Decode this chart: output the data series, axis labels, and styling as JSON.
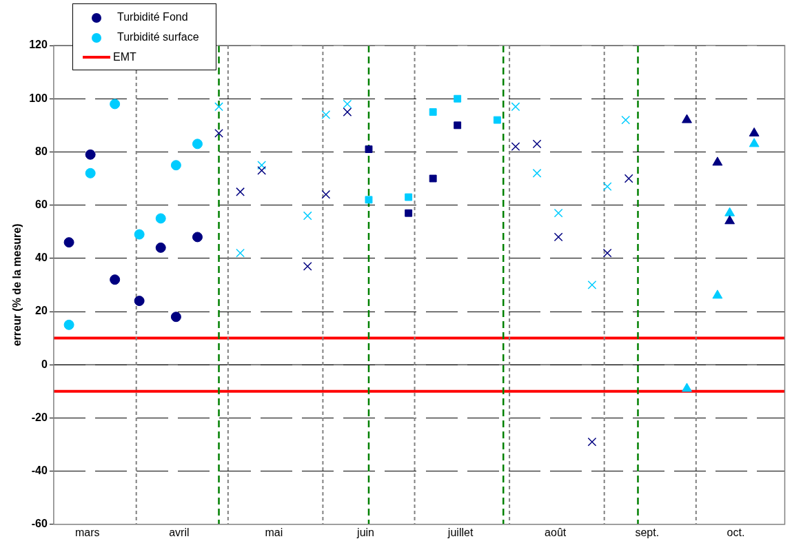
{
  "chart_data": {
    "type": "scatter",
    "ylabel": "erreur (% de la mesure)",
    "legend": "top left",
    "grid": "y",
    "xlim": [
      "--03-05",
      "--10-30"
    ],
    "xticks": [
      {
        "value": "--03-16",
        "label": "mars"
      },
      {
        "value": "--04-15",
        "label": "avril"
      },
      {
        "value": "--05-16",
        "label": "mai"
      },
      {
        "value": "--06-15",
        "label": "juin"
      },
      {
        "value": "--07-16",
        "label": "juillet"
      },
      {
        "value": "--08-16",
        "label": "août"
      },
      {
        "value": "--09-15",
        "label": "sept."
      },
      {
        "value": "--10-14",
        "label": "oct."
      }
    ],
    "ylim": [
      -60,
      120
    ],
    "yticks": [
      -60,
      -40,
      -20,
      0,
      20,
      40,
      60,
      80,
      100,
      120
    ],
    "series": [
      {
        "name": "Turbidité Fond",
        "color": "#000080",
        "marker": "circle",
        "x": [
          "--03-10",
          "--03-17",
          "--03-25",
          "--04-02",
          "--04-09",
          "--04-14",
          "--04-21"
        ],
        "values": [
          46,
          79,
          32,
          24,
          44,
          18,
          48
        ]
      },
      {
        "name": "Turbidité surface",
        "color": "#00ccff",
        "marker": "circle",
        "x": [
          "--03-10",
          "--03-17",
          "--03-25",
          "--04-02",
          "--04-09",
          "--04-14",
          "--04-21"
        ],
        "values": [
          15,
          72,
          98,
          49,
          55,
          75,
          83
        ]
      },
      {
        "color": "#000080",
        "marker": "cross",
        "x": [
          "--04-28",
          "--05-05",
          "--05-12",
          "--05-27",
          "--06-02",
          "--06-09"
        ],
        "values": [
          87,
          65,
          73,
          37,
          64,
          95
        ]
      },
      {
        "color": "#00ccff",
        "marker": "cross",
        "x": [
          "--04-28",
          "--05-05",
          "--05-12",
          "--05-27",
          "--06-02",
          "--06-09"
        ],
        "values": [
          97,
          42,
          75,
          56,
          94,
          98
        ]
      },
      {
        "color": "#000080",
        "marker": "square",
        "x": [
          "--06-16",
          "--06-29",
          "--07-07",
          "--07-15"
        ],
        "values": [
          81,
          57,
          70,
          90
        ]
      },
      {
        "color": "#00ccff",
        "marker": "square",
        "x": [
          "--06-16",
          "--06-29",
          "--07-07",
          "--07-15",
          "--07-28"
        ],
        "values": [
          62,
          63,
          95,
          100,
          92
        ]
      },
      {
        "color": "#000080",
        "marker": "cross",
        "x": [
          "--08-03",
          "--08-10",
          "--08-17",
          "--08-28",
          "--09-02",
          "--09-09"
        ],
        "values": [
          82,
          83,
          48,
          -29,
          42,
          70
        ]
      },
      {
        "color": "#00ccff",
        "marker": "cross",
        "x": [
          "--08-03",
          "--08-10",
          "--08-17",
          "--08-28",
          "--09-02",
          "--09-08"
        ],
        "values": [
          97,
          72,
          57,
          30,
          67,
          92
        ]
      },
      {
        "color": "#000080",
        "marker": "triangle",
        "x": [
          "--09-28",
          "--10-08",
          "--10-12",
          "--10-20"
        ],
        "values": [
          92,
          76,
          54,
          87
        ]
      },
      {
        "color": "#00ccff",
        "marker": "triangle",
        "x": [
          "--09-28",
          "--10-08",
          "--10-12",
          "--10-20"
        ],
        "values": [
          -9,
          26,
          57,
          83
        ]
      }
    ],
    "ref_lines": [
      {
        "axis": "y",
        "value": 10,
        "label": "EMT",
        "color": "#ff0000",
        "line_style": "solid"
      },
      {
        "axis": "y",
        "value": -10,
        "color": "#ff0000",
        "line_style": "solid"
      },
      {
        "axis": "x",
        "value": "--04-01",
        "color": "#808080",
        "line_style": "dotted"
      },
      {
        "axis": "x",
        "value": "--05-01",
        "color": "#808080",
        "line_style": "dotted"
      },
      {
        "axis": "x",
        "value": "--06-01",
        "color": "#808080",
        "line_style": "dotted"
      },
      {
        "axis": "x",
        "value": "--07-01",
        "color": "#808080",
        "line_style": "dotted"
      },
      {
        "axis": "x",
        "value": "--08-01",
        "color": "#808080",
        "line_style": "dotted"
      },
      {
        "axis": "x",
        "value": "--09-01",
        "color": "#808080",
        "line_style": "dotted"
      },
      {
        "axis": "x",
        "value": "--10-01",
        "color": "#808080",
        "line_style": "dotted"
      },
      {
        "axis": "x",
        "value": "--04-28",
        "color": "#008000",
        "line_style": "dashed"
      },
      {
        "axis": "x",
        "value": "--06-16",
        "color": "#008000",
        "line_style": "dashed"
      },
      {
        "axis": "x",
        "value": "--07-30",
        "color": "#008000",
        "line_style": "dashed"
      },
      {
        "axis": "x",
        "value": "--09-12",
        "color": "#008000",
        "line_style": "dashed"
      }
    ]
  }
}
